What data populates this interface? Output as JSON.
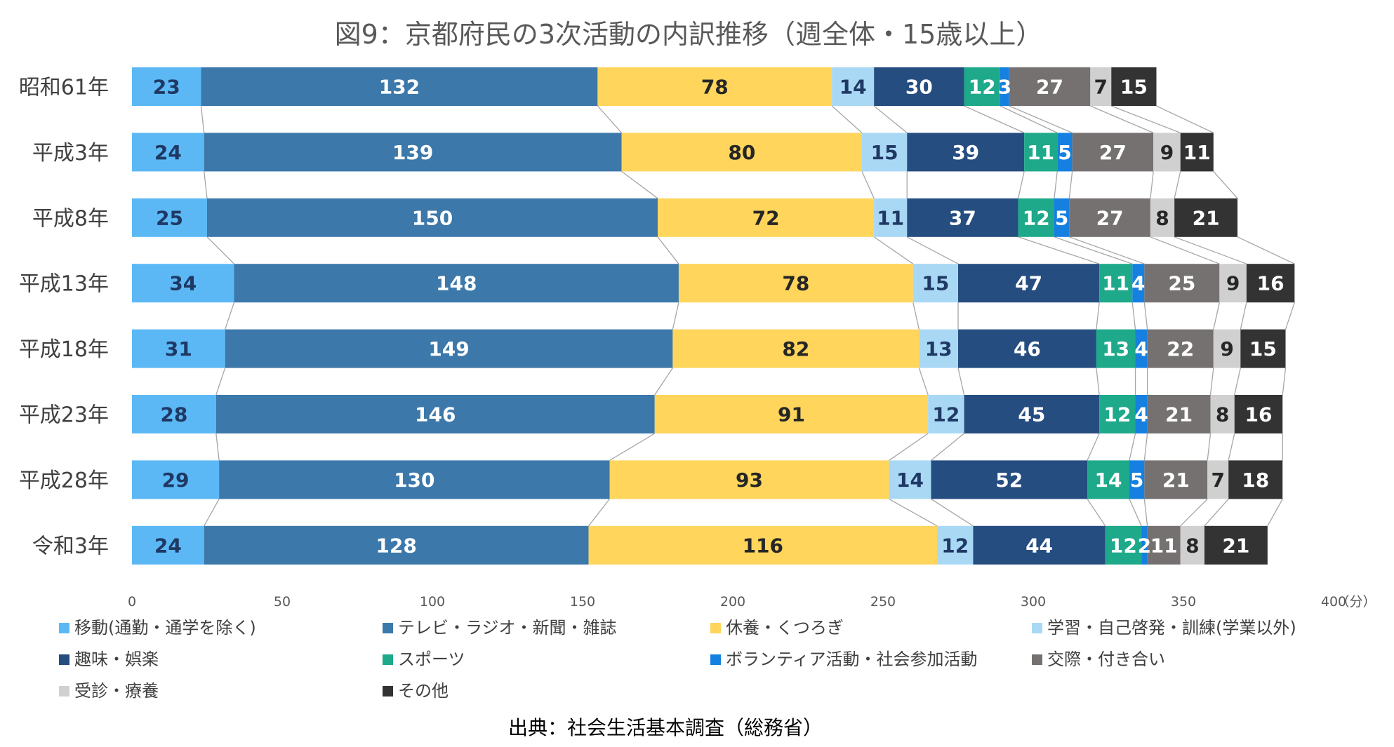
{
  "chart_data": {
    "type": "bar",
    "orientation": "horizontal",
    "stacked": true,
    "title": "図9：京都府民の3次活動の内訳推移（週全体・15歳以上）",
    "unit_label": "（分）",
    "source": "出典：社会生活基本調査（総務省）",
    "categories": [
      "昭和61年",
      "平成3年",
      "平成8年",
      "平成13年",
      "平成18年",
      "平成23年",
      "平成28年",
      "令和3年"
    ],
    "x_ticks": [
      "0",
      "50",
      "100",
      "150",
      "200",
      "250",
      "300",
      "350",
      "400"
    ],
    "xlim": [
      0,
      400
    ],
    "legend_position": "bottom",
    "series_lines": true,
    "series": [
      {
        "name": "移動(通勤・通学を除く)",
        "color": "#5BB8F5",
        "label_color": "#1F3864",
        "values": [
          23,
          24,
          25,
          34,
          31,
          28,
          29,
          24
        ]
      },
      {
        "name": "テレビ・ラジオ・新聞・雑誌",
        "color": "#3C78AA",
        "label_color": "#FFFFFF",
        "values": [
          132,
          139,
          150,
          148,
          149,
          146,
          130,
          128
        ]
      },
      {
        "name": "休養・くつろぎ",
        "color": "#FFD55C",
        "label_color": "#262626",
        "values": [
          78,
          80,
          72,
          78,
          82,
          91,
          93,
          116
        ]
      },
      {
        "name": "学習・自己啓発・訓練(学業以外)",
        "color": "#A9D8F5",
        "label_color": "#1F3864",
        "values": [
          14,
          15,
          11,
          15,
          13,
          12,
          14,
          12
        ]
      },
      {
        "name": "趣味・娯楽",
        "color": "#264D80",
        "label_color": "#FFFFFF",
        "values": [
          30,
          39,
          37,
          47,
          46,
          45,
          52,
          44
        ]
      },
      {
        "name": "スポーツ",
        "color": "#1DA98A",
        "label_color": "#FFFFFF",
        "values": [
          12,
          11,
          12,
          11,
          13,
          12,
          14,
          12
        ]
      },
      {
        "name": "ボランティア活動・社会参加活動",
        "color": "#1580E0",
        "label_color": "#FFFFFF",
        "values": [
          3,
          5,
          5,
          4,
          4,
          4,
          5,
          2
        ]
      },
      {
        "name": "交際・付き合い",
        "color": "#767171",
        "label_color": "#FFFFFF",
        "values": [
          27,
          27,
          27,
          25,
          22,
          21,
          21,
          11
        ]
      },
      {
        "name": "受診・療養",
        "color": "#D0D0D0",
        "label_color": "#262626",
        "values": [
          7,
          9,
          8,
          9,
          9,
          8,
          7,
          8
        ]
      },
      {
        "name": "その他",
        "color": "#333333",
        "label_color": "#FFFFFF",
        "values": [
          15,
          11,
          21,
          16,
          15,
          16,
          18,
          21
        ]
      }
    ]
  }
}
